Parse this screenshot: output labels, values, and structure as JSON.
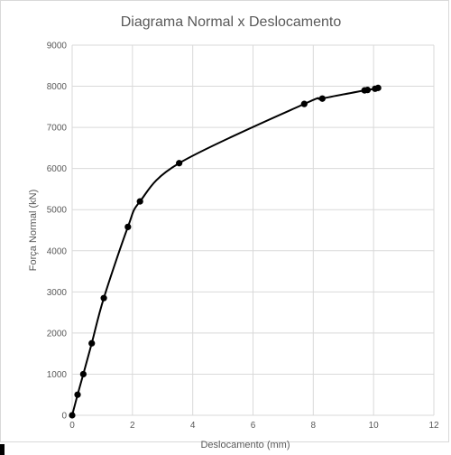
{
  "chart_data": {
    "type": "line",
    "title": "Diagrama Normal x Deslocamento",
    "xlabel": "Deslocamento (mm)",
    "ylabel": "Força Normal (kN)",
    "xlim": [
      0,
      12
    ],
    "ylim": [
      0,
      9000
    ],
    "x_ticks": [
      0,
      2,
      4,
      6,
      8,
      10,
      12
    ],
    "y_ticks": [
      0,
      1000,
      2000,
      3000,
      4000,
      5000,
      6000,
      7000,
      8000,
      9000
    ],
    "grid": true,
    "legend": "none",
    "line_color": "#000000",
    "grid_color": "#d9d9d9",
    "series": [
      {
        "x": [
          0,
          0.18,
          0.37,
          0.65,
          1.05,
          1.85,
          2.25,
          3.55,
          7.7,
          8.3,
          9.7,
          9.8,
          10.05,
          10.15
        ],
        "y": [
          0,
          500,
          1000,
          1750,
          2850,
          4580,
          5200,
          6130,
          7570,
          7700,
          7900,
          7910,
          7940,
          7960
        ]
      }
    ]
  }
}
